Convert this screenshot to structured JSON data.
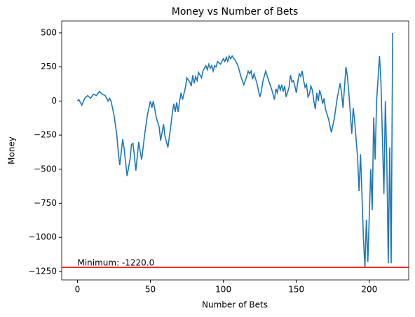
{
  "chart_data": {
    "type": "line",
    "title": "Money vs Number of Bets",
    "x_label": "Number of Bets",
    "y_label": "Money",
    "x": [
      0,
      1,
      3,
      5,
      7,
      9,
      11,
      13,
      15,
      17,
      19,
      20,
      21,
      22,
      23,
      25,
      27,
      28,
      29,
      31,
      32,
      34,
      36,
      37,
      38,
      39,
      40,
      42,
      43,
      44,
      46,
      48,
      50,
      51,
      52,
      54,
      56,
      57,
      59,
      60,
      62,
      64,
      65,
      66,
      67,
      68,
      69,
      70,
      71,
      72,
      74,
      75,
      77,
      78,
      79,
      80,
      81,
      82,
      83,
      85,
      86,
      88,
      89,
      90,
      91,
      92,
      93,
      94,
      95,
      96,
      98,
      100,
      101,
      102,
      103,
      104,
      105,
      106,
      108,
      110,
      112,
      114,
      116,
      117,
      118,
      119,
      120,
      121,
      123,
      125,
      126,
      127,
      129,
      131,
      133,
      135,
      136,
      137,
      138,
      139,
      140,
      141,
      142,
      143,
      145,
      146,
      147,
      148,
      149,
      150,
      151,
      152,
      153,
      154,
      155,
      156,
      157,
      158,
      159,
      160,
      161,
      162,
      163,
      164,
      165,
      166,
      167,
      168,
      169,
      170,
      172,
      174,
      176,
      178,
      180,
      181,
      182,
      184,
      185,
      186,
      188,
      189,
      190,
      192,
      193,
      194,
      196,
      197,
      198,
      199,
      201,
      202,
      203,
      204,
      205,
      207,
      208,
      210,
      211,
      212,
      213,
      214,
      215,
      216
    ],
    "series": [
      {
        "name": "Money",
        "color": "#1f77b4",
        "values": [
          0,
          10,
          -30,
          20,
          40,
          20,
          50,
          40,
          70,
          50,
          40,
          20,
          0,
          20,
          0,
          -100,
          -250,
          -380,
          -470,
          -280,
          -350,
          -550,
          -430,
          -320,
          -310,
          -400,
          -510,
          -300,
          -370,
          -430,
          -250,
          -100,
          0,
          -50,
          0,
          -120,
          -190,
          -290,
          -170,
          -260,
          -340,
          -180,
          -90,
          -20,
          -80,
          -10,
          -80,
          0,
          60,
          10,
          100,
          170,
          140,
          110,
          190,
          130,
          180,
          150,
          210,
          170,
          220,
          260,
          230,
          270,
          240,
          260,
          220,
          260,
          250,
          290,
          270,
          310,
          290,
          320,
          290,
          330,
          310,
          330,
          300,
          260,
          180,
          120,
          180,
          220,
          200,
          220,
          160,
          200,
          130,
          30,
          70,
          140,
          220,
          150,
          90,
          10,
          90,
          60,
          120,
          80,
          120,
          70,
          110,
          30,
          100,
          190,
          140,
          150,
          110,
          60,
          140,
          200,
          180,
          220,
          150,
          100,
          120,
          30,
          50,
          110,
          80,
          0,
          -60,
          60,
          0,
          80,
          40,
          -20,
          20,
          -60,
          -130,
          -230,
          -130,
          20,
          130,
          60,
          -50,
          250,
          180,
          60,
          -240,
          -50,
          -150,
          -420,
          -660,
          -390,
          -1010,
          -1220,
          -870,
          -1180,
          -500,
          -800,
          -120,
          -430,
          0,
          330,
          140,
          -680,
          0,
          -430,
          -1190,
          -340,
          -1190,
          500
        ]
      }
    ],
    "xlim": [
      -10.8,
      227
    ],
    "ylim": [
      -1312,
      587
    ],
    "xticks": [
      0,
      50,
      100,
      150,
      200
    ],
    "yticks": [
      {
        "value": -1250,
        "label": "−1250"
      },
      {
        "value": -1000,
        "label": "−1000"
      },
      {
        "value": -750,
        "label": "−750"
      },
      {
        "value": -500,
        "label": "−500"
      },
      {
        "value": -250,
        "label": "−250"
      },
      0,
      250,
      500
    ],
    "hline": {
      "value": -1220,
      "color": "#ff0000",
      "label": "Minimum: -1220.0"
    }
  }
}
